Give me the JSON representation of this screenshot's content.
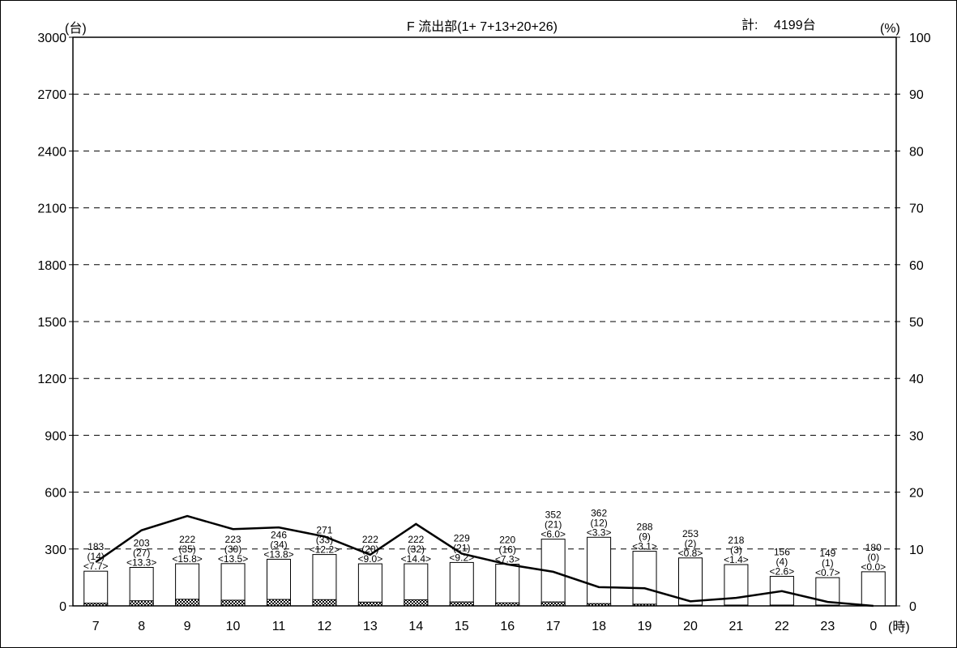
{
  "chart_data": {
    "type": "bar",
    "title": "F 流出部(1+ 7+13+20+26)",
    "total_label": "計:",
    "total_value": "4199台",
    "ylabel_left": "(台)",
    "ylabel_right": "(%)",
    "xlabel": "(時)",
    "ylim": [
      0,
      3000
    ],
    "ylim_right": [
      0,
      100
    ],
    "y_ticks": [
      "0",
      "300",
      "600",
      "900",
      "1200",
      "1500",
      "1800",
      "2100",
      "2400",
      "2700",
      "3000"
    ],
    "y2_ticks": [
      "0",
      "10",
      "20",
      "30",
      "40",
      "50",
      "60",
      "70",
      "80",
      "90",
      "100"
    ],
    "grid": "dashed-horizontal",
    "categories": [
      "7",
      "8",
      "9",
      "10",
      "11",
      "12",
      "13",
      "14",
      "15",
      "16",
      "17",
      "18",
      "19",
      "20",
      "21",
      "22",
      "23",
      "0"
    ],
    "series": [
      {
        "name": "",
        "kind": "bar",
        "values": [
          183,
          203,
          222,
          223,
          246,
          271,
          222,
          222,
          229,
          220,
          352,
          362,
          288,
          253,
          218,
          156,
          149,
          180
        ],
        "labels": [
          "183",
          "203",
          "222",
          "223",
          "246",
          "271",
          "222",
          "222",
          "229",
          "220",
          "352",
          "362",
          "288",
          "253",
          "218",
          "156",
          "149",
          "180"
        ]
      },
      {
        "name": "",
        "kind": "bar-hatched",
        "values": [
          14,
          27,
          35,
          30,
          34,
          33,
          20,
          32,
          21,
          16,
          21,
          12,
          9,
          2,
          3,
          4,
          1,
          0
        ],
        "labels": [
          "(14)",
          "(27)",
          "(35)",
          "(30)",
          "(34)",
          "(33)",
          "(20)",
          "(32)",
          "(21)",
          "(16)",
          "(21)",
          "(12)",
          "(9)",
          "(2)",
          "(3)",
          "(4)",
          "(1)",
          "(0)"
        ]
      },
      {
        "name": "",
        "kind": "line",
        "axis": "right",
        "values": [
          7.7,
          13.3,
          15.8,
          13.5,
          13.8,
          12.2,
          9.0,
          14.4,
          9.2,
          7.3,
          6.0,
          3.3,
          3.1,
          0.8,
          1.4,
          2.6,
          0.7,
          0.0
        ],
        "labels": [
          "<7.7>",
          "<13.3>",
          "<15.8>",
          "<13.5>",
          "<13.8>",
          "<12.2>",
          "<9.0>",
          "<14.4>",
          "<9.2>",
          "<7.3>",
          "<6.0>",
          "<3.3>",
          "<3.1>",
          "<0.8>",
          "<1.4>",
          "<2.6>",
          "<0.7>",
          "<0.0>"
        ]
      }
    ]
  }
}
